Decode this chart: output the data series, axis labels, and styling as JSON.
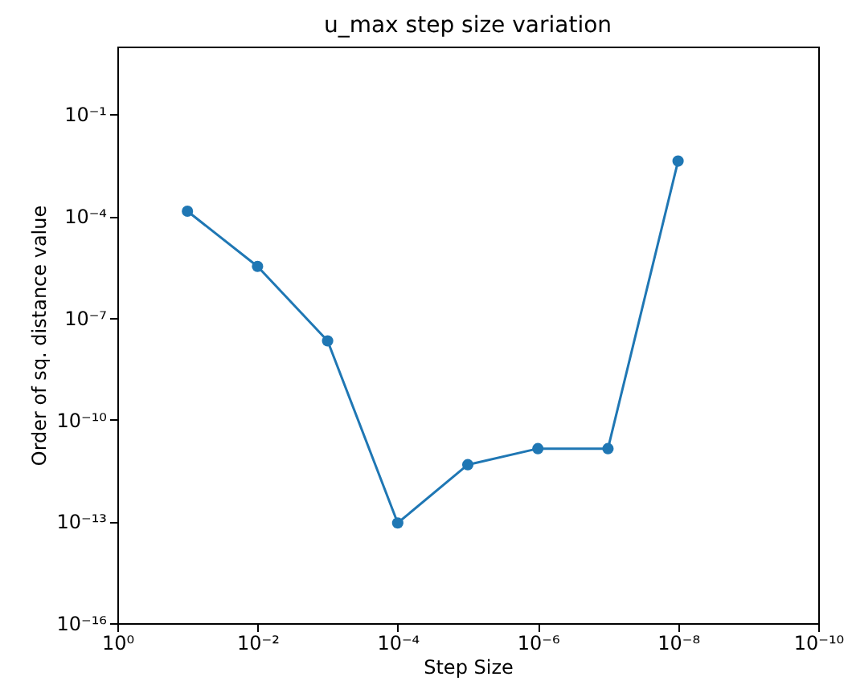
{
  "chart_data": {
    "type": "line",
    "title": "u_max step size variation",
    "xlabel": "Step Size",
    "ylabel": "Order of sq. distance value",
    "x": [
      0.1,
      0.01,
      0.001,
      0.0001,
      1e-05,
      1e-06,
      1e-07,
      1e-08
    ],
    "series": [
      {
        "color": "#1f77b4",
        "values": [
          0.00014,
          3.3e-06,
          2.1e-08,
          9e-14,
          4.7e-12,
          1.4e-11,
          1.4e-11,
          0.0042
        ]
      }
    ],
    "log": "xy",
    "marker": "circle",
    "line_style": "solid",
    "grid": false,
    "xlim": [
      1,
      1e-10
    ],
    "ylim": [
      1e-16,
      10
    ],
    "xticks": [
      {
        "value": 1,
        "label": "10⁰"
      },
      {
        "value": 0.01,
        "label": "10⁻²"
      },
      {
        "value": 0.0001,
        "label": "10⁻⁴"
      },
      {
        "value": 1e-06,
        "label": "10⁻⁶"
      },
      {
        "value": 1e-08,
        "label": "10⁻⁸"
      },
      {
        "value": 1e-10,
        "label": "10⁻¹⁰"
      }
    ],
    "yticks": [
      {
        "value": 1e-16,
        "label": "10⁻¹⁶"
      },
      {
        "value": 1e-13,
        "label": "10⁻¹³"
      },
      {
        "value": 1e-10,
        "label": "10⁻¹⁰"
      },
      {
        "value": 1e-07,
        "label": "10⁻⁷"
      },
      {
        "value": 0.0001,
        "label": "10⁻⁴"
      },
      {
        "value": 0.1,
        "label": "10⁻¹"
      }
    ]
  }
}
